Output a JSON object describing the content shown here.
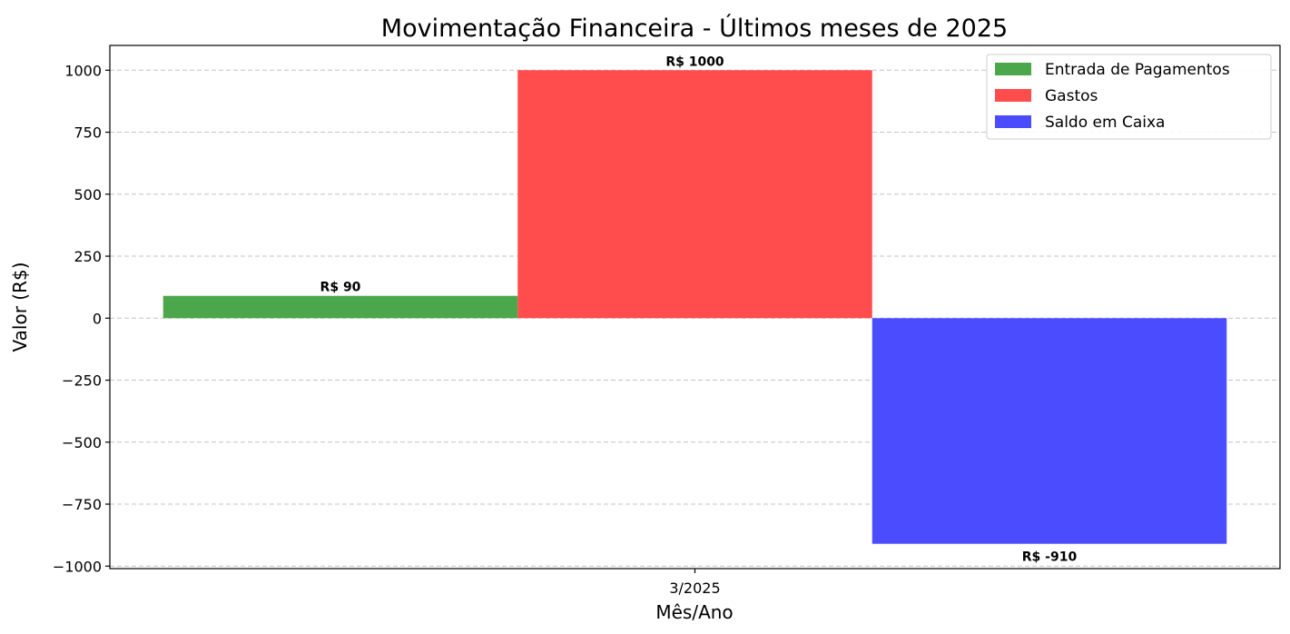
{
  "chart_data": {
    "type": "bar",
    "title": "Movimentação Financeira - Últimos meses de 2025",
    "xlabel": "Mês/Ano",
    "ylabel": "Valor (R$)",
    "categories": [
      "3/2025"
    ],
    "series": [
      {
        "name": "Entrada de Pagamentos",
        "values": [
          90
        ],
        "color": "#4ca64c",
        "labels": [
          "R$ 90"
        ]
      },
      {
        "name": "Gastos",
        "values": [
          1000
        ],
        "color": "#ff4c4c",
        "labels": [
          "R$ 1000"
        ]
      },
      {
        "name": "Saldo em Caixa",
        "values": [
          -910
        ],
        "color": "#4c4cff",
        "labels": [
          "R$ -910"
        ]
      }
    ],
    "ylim": [
      -1010,
      1100
    ],
    "yticks": [
      -1000,
      -750,
      -500,
      -250,
      0,
      250,
      500,
      750,
      1000
    ],
    "ytick_labels": [
      "−1000",
      "−750",
      "−500",
      "−250",
      "0",
      "250",
      "500",
      "750",
      "1000"
    ],
    "grid": "y-dashed",
    "legend_position": "top-right"
  }
}
